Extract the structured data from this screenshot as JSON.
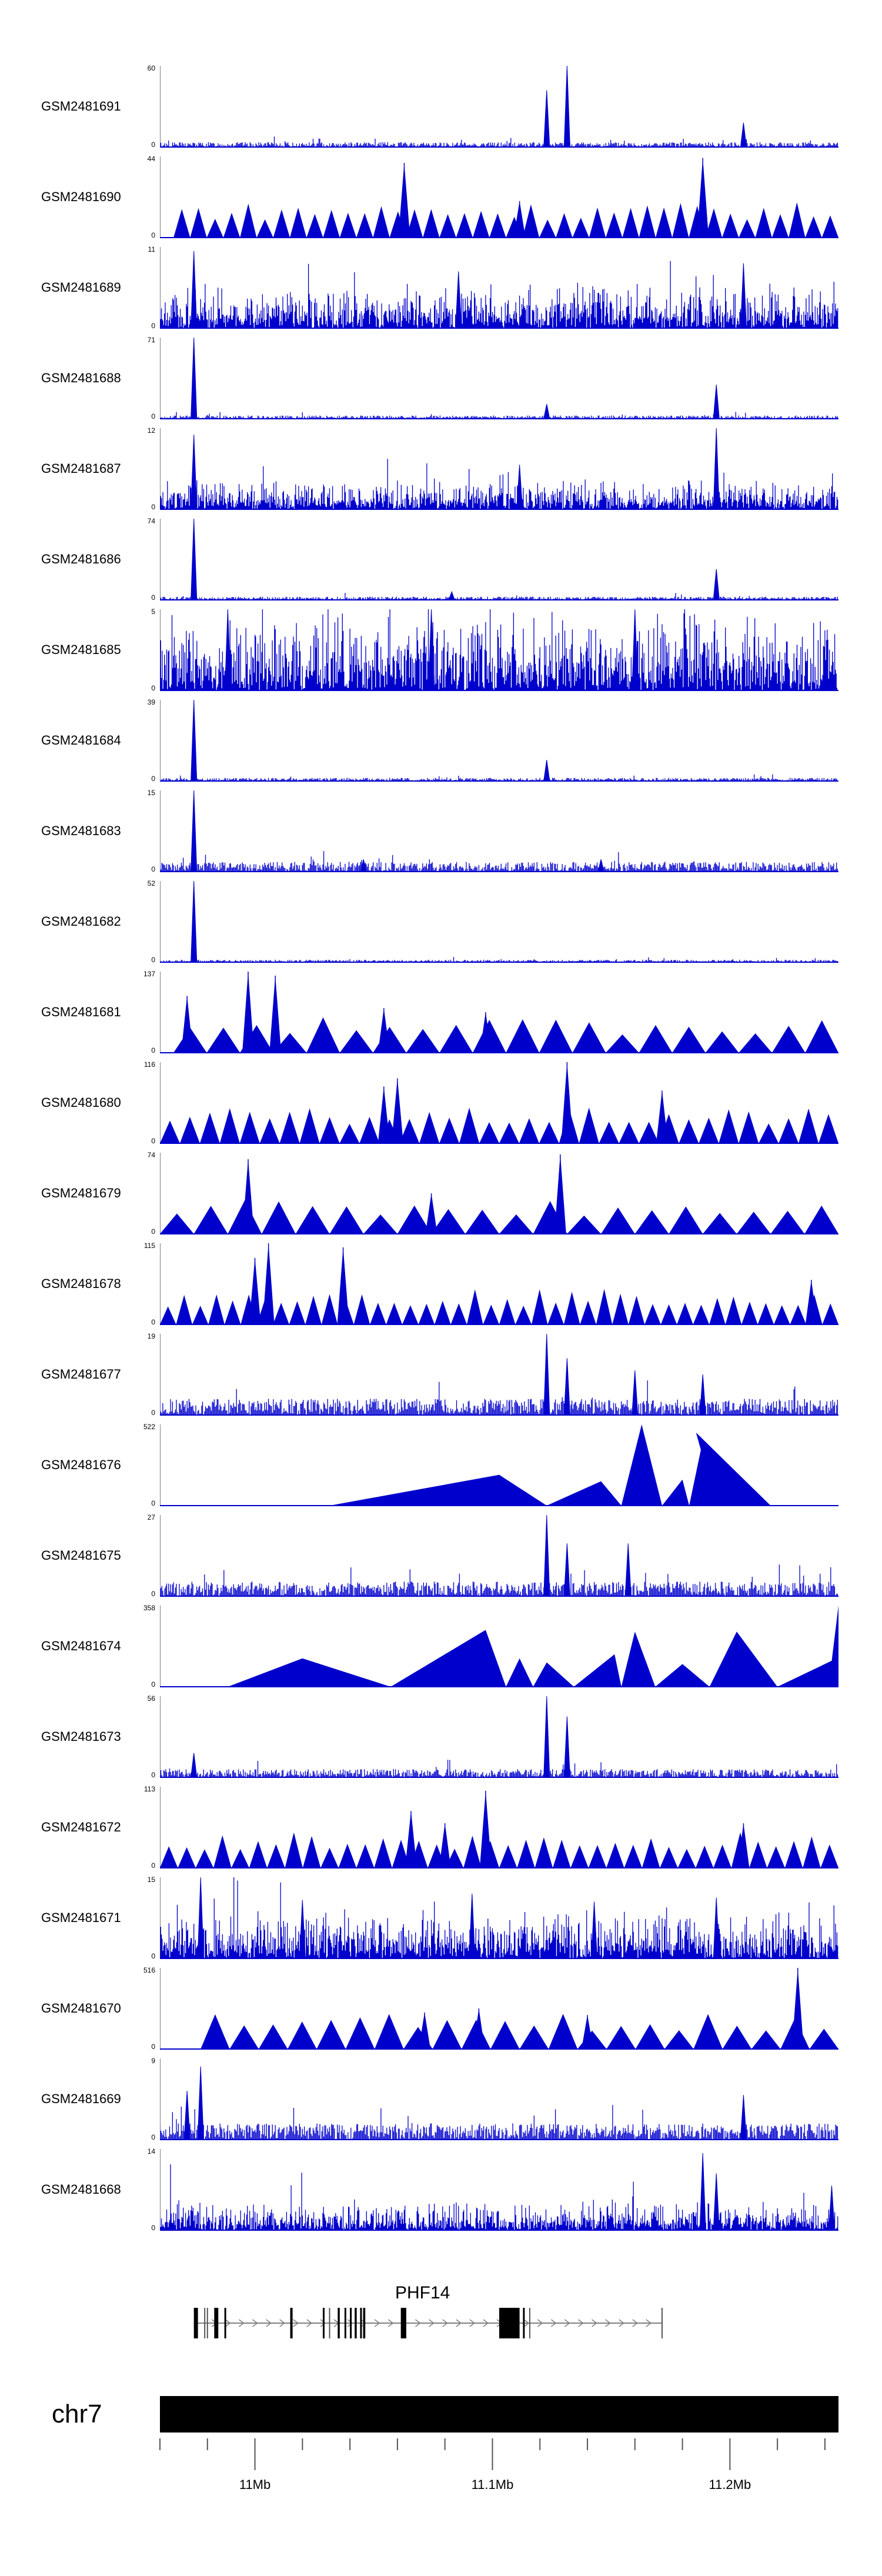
{
  "tracks": [
    {
      "id": "GSM2481691",
      "max": "60",
      "min": "0",
      "style": "peaks",
      "peaks": [
        [
          0.57,
          0.7
        ],
        [
          0.6,
          1.0
        ],
        [
          0.86,
          0.3
        ]
      ],
      "noise": 0.06
    },
    {
      "id": "GSM2481690",
      "max": "44",
      "min": "0",
      "style": "triangles",
      "start": 0.02,
      "count": 40,
      "spikes": [
        [
          0.36,
          0.92
        ],
        [
          0.8,
          0.98
        ],
        [
          0.53,
          0.45
        ]
      ]
    },
    {
      "id": "GSM2481689",
      "max": "11",
      "min": "0",
      "style": "dense",
      "level": 0.45,
      "spikes": [
        [
          0.05,
          0.95
        ],
        [
          0.44,
          0.7
        ],
        [
          0.86,
          0.8
        ]
      ]
    },
    {
      "id": "GSM2481688",
      "max": "71",
      "min": "0",
      "style": "peaks",
      "peaks": [
        [
          0.05,
          1.0
        ],
        [
          0.57,
          0.18
        ],
        [
          0.82,
          0.42
        ]
      ],
      "noise": 0.04
    },
    {
      "id": "GSM2481687",
      "max": "12",
      "min": "0",
      "style": "dense",
      "level": 0.3,
      "spikes": [
        [
          0.05,
          0.92
        ],
        [
          0.82,
          1.0
        ],
        [
          0.53,
          0.55
        ]
      ]
    },
    {
      "id": "GSM2481686",
      "max": "74",
      "min": "0",
      "style": "peaks",
      "peaks": [
        [
          0.05,
          1.0
        ],
        [
          0.82,
          0.38
        ],
        [
          0.43,
          0.1
        ]
      ],
      "noise": 0.04
    },
    {
      "id": "GSM2481685",
      "max": "5",
      "min": "0",
      "style": "dense",
      "level": 0.8,
      "spikes": [
        [
          0.1,
          1.0
        ],
        [
          0.4,
          1.0
        ],
        [
          0.7,
          1.0
        ]
      ]
    },
    {
      "id": "GSM2481684",
      "max": "39",
      "min": "0",
      "style": "peaks",
      "peaks": [
        [
          0.05,
          1.0
        ],
        [
          0.57,
          0.26
        ]
      ],
      "noise": 0.04
    },
    {
      "id": "GSM2481683",
      "max": "15",
      "min": "0",
      "style": "peaks",
      "peaks": [
        [
          0.05,
          1.0
        ],
        [
          0.3,
          0.15
        ],
        [
          0.65,
          0.15
        ]
      ],
      "noise": 0.12
    },
    {
      "id": "GSM2481682",
      "max": "52",
      "min": "0",
      "style": "peaks",
      "peaks": [
        [
          0.05,
          1.0
        ]
      ],
      "noise": 0.03
    },
    {
      "id": "GSM2481681",
      "max": "137",
      "min": "0",
      "style": "triangles",
      "start": 0.02,
      "count": 20,
      "spikes": [
        [
          0.13,
          1.0
        ],
        [
          0.17,
          0.95
        ],
        [
          0.04,
          0.7
        ],
        [
          0.33,
          0.55
        ],
        [
          0.48,
          0.5
        ]
      ]
    },
    {
      "id": "GSM2481680",
      "max": "116",
      "min": "0",
      "style": "triangles",
      "start": 0.0,
      "count": 34,
      "spikes": [
        [
          0.6,
          1.0
        ],
        [
          0.33,
          0.7
        ],
        [
          0.74,
          0.65
        ],
        [
          0.35,
          0.8
        ]
      ]
    },
    {
      "id": "GSM2481679",
      "max": "74",
      "min": "0",
      "style": "triangles",
      "start": 0.0,
      "count": 20,
      "spikes": [
        [
          0.13,
          0.92
        ],
        [
          0.59,
          0.98
        ],
        [
          0.4,
          0.5
        ]
      ]
    },
    {
      "id": "GSM2481678",
      "max": "115",
      "min": "0",
      "style": "triangles",
      "start": 0.0,
      "count": 42,
      "spikes": [
        [
          0.16,
          1.0
        ],
        [
          0.27,
          0.95
        ],
        [
          0.14,
          0.82
        ],
        [
          0.96,
          0.55
        ]
      ]
    },
    {
      "id": "GSM2481677",
      "max": "19",
      "min": "0",
      "style": "peaks",
      "peaks": [
        [
          0.57,
          1.0
        ],
        [
          0.7,
          0.55
        ],
        [
          0.8,
          0.5
        ],
        [
          0.6,
          0.7
        ]
      ],
      "noise": 0.2
    },
    {
      "id": "GSM2481676",
      "max": "522",
      "min": "0",
      "style": "shape",
      "points": [
        [
          0.25,
          0.0
        ],
        [
          0.5,
          0.38
        ],
        [
          0.57,
          0.0
        ],
        [
          0.65,
          0.3
        ],
        [
          0.68,
          0.0
        ],
        [
          0.71,
          1.0
        ],
        [
          0.74,
          0.0
        ],
        [
          0.77,
          0.32
        ],
        [
          0.78,
          0.0
        ],
        [
          0.8,
          0.8
        ],
        [
          0.82,
          0.0
        ],
        [
          0.79,
          0.9
        ],
        [
          0.9,
          0.0
        ]
      ]
    },
    {
      "id": "GSM2481675",
      "max": "27",
      "min": "0",
      "style": "peaks",
      "peaks": [
        [
          0.57,
          1.0
        ],
        [
          0.6,
          0.65
        ],
        [
          0.69,
          0.65
        ]
      ],
      "noise": 0.18
    },
    {
      "id": "GSM2481674",
      "max": "358",
      "min": "0",
      "style": "shape",
      "points": [
        [
          0.1,
          0.0
        ],
        [
          0.21,
          0.35
        ],
        [
          0.34,
          0.0
        ],
        [
          0.48,
          0.7
        ],
        [
          0.51,
          0.0
        ],
        [
          0.53,
          0.35
        ],
        [
          0.55,
          0.0
        ],
        [
          0.57,
          0.3
        ],
        [
          0.61,
          0.0
        ],
        [
          0.67,
          0.4
        ],
        [
          0.68,
          0.0
        ],
        [
          0.7,
          0.68
        ],
        [
          0.73,
          0.0
        ],
        [
          0.77,
          0.28
        ],
        [
          0.81,
          0.0
        ],
        [
          0.85,
          0.68
        ],
        [
          0.91,
          0.0
        ],
        [
          0.99,
          0.32
        ],
        [
          1.0,
          1.0
        ],
        [
          1.0,
          0.0
        ]
      ]
    },
    {
      "id": "GSM2481673",
      "max": "56",
      "min": "0",
      "style": "peaks",
      "peaks": [
        [
          0.57,
          1.0
        ],
        [
          0.6,
          0.75
        ],
        [
          0.05,
          0.3
        ]
      ],
      "noise": 0.1
    },
    {
      "id": "GSM2481672",
      "max": "113",
      "min": "0",
      "style": "triangles",
      "start": 0.0,
      "count": 38,
      "spikes": [
        [
          0.48,
          0.95
        ],
        [
          0.37,
          0.7
        ],
        [
          0.42,
          0.55
        ],
        [
          0.86,
          0.55
        ]
      ]
    },
    {
      "id": "GSM2481671",
      "max": "15",
      "min": "0",
      "style": "dense",
      "level": 0.5,
      "spikes": [
        [
          0.06,
          1.0
        ],
        [
          0.21,
          0.72
        ],
        [
          0.46,
          0.8
        ],
        [
          0.64,
          0.7
        ],
        [
          0.82,
          0.75
        ]
      ]
    },
    {
      "id": "GSM2481670",
      "max": "516",
      "min": "0",
      "style": "triangles",
      "start": 0.06,
      "count": 22,
      "spikes": [
        [
          0.94,
          1.0
        ],
        [
          0.47,
          0.5
        ],
        [
          0.39,
          0.45
        ],
        [
          0.63,
          0.42
        ]
      ]
    },
    {
      "id": "GSM2481669",
      "max": "9",
      "min": "0",
      "style": "peaks",
      "peaks": [
        [
          0.06,
          0.9
        ],
        [
          0.04,
          0.6
        ],
        [
          0.86,
          0.55
        ]
      ],
      "noise": 0.2
    },
    {
      "id": "GSM2481668",
      "max": "14",
      "min": "0",
      "style": "dense",
      "level": 0.3,
      "spikes": [
        [
          0.8,
          0.95
        ],
        [
          0.82,
          0.7
        ],
        [
          0.99,
          0.55
        ]
      ]
    }
  ],
  "colors": {
    "signal": "#0000cd",
    "axis": "#000000",
    "gene": "#000000",
    "intron": "#808080"
  },
  "gene": {
    "name": "PHF14",
    "start_fraction": 0.05,
    "end_fraction": 0.74,
    "exons": [
      [
        0.05,
        0.056
      ],
      [
        0.08,
        0.086
      ],
      [
        0.095,
        0.097
      ],
      [
        0.192,
        0.194
      ],
      [
        0.24,
        0.242
      ],
      [
        0.262,
        0.265
      ],
      [
        0.272,
        0.274
      ],
      [
        0.28,
        0.282
      ],
      [
        0.287,
        0.29
      ],
      [
        0.295,
        0.297
      ],
      [
        0.3,
        0.302
      ],
      [
        0.355,
        0.363
      ],
      [
        0.5,
        0.53
      ],
      [
        0.535,
        0.537
      ]
    ],
    "thin_marks": [
      0.066,
      0.07,
      0.195,
      0.25,
      0.3,
      0.545,
      0.74
    ]
  },
  "chromosome": {
    "label": "chr7",
    "ticks": [
      {
        "pos": 0.0,
        "label": ""
      },
      {
        "pos": 0.07,
        "label": ""
      },
      {
        "pos": 0.14,
        "label": "11Mb"
      },
      {
        "pos": 0.21,
        "label": ""
      },
      {
        "pos": 0.28,
        "label": ""
      },
      {
        "pos": 0.35,
        "label": ""
      },
      {
        "pos": 0.42,
        "label": ""
      },
      {
        "pos": 0.49,
        "label": "11.1Mb"
      },
      {
        "pos": 0.56,
        "label": ""
      },
      {
        "pos": 0.63,
        "label": ""
      },
      {
        "pos": 0.7,
        "label": ""
      },
      {
        "pos": 0.77,
        "label": ""
      },
      {
        "pos": 0.84,
        "label": "11.2Mb"
      },
      {
        "pos": 0.91,
        "label": ""
      },
      {
        "pos": 0.98,
        "label": ""
      }
    ]
  }
}
